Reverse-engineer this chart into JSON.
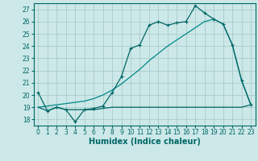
{
  "xlabel": "Humidex (Indice chaleur)",
  "bg_color": "#cce8e8",
  "grid_color": "#aacccc",
  "line_color_dark": "#006666",
  "line_color_mid": "#008888",
  "xlim": [
    -0.5,
    23.5
  ],
  "ylim": [
    17.5,
    27.5
  ],
  "yticks": [
    18,
    19,
    20,
    21,
    22,
    23,
    24,
    25,
    26,
    27
  ],
  "xticks": [
    0,
    1,
    2,
    3,
    4,
    5,
    6,
    7,
    8,
    9,
    10,
    11,
    12,
    13,
    14,
    15,
    16,
    17,
    18,
    19,
    20,
    21,
    22,
    23
  ],
  "series1_x": [
    0,
    1,
    2,
    3,
    4,
    5,
    6,
    7,
    8,
    9,
    10,
    11,
    12,
    13,
    14,
    15,
    16,
    17,
    18,
    19,
    20,
    21,
    22,
    23
  ],
  "series1_y": [
    20.2,
    18.7,
    19.0,
    18.8,
    17.8,
    18.8,
    18.9,
    19.1,
    20.2,
    21.5,
    23.8,
    24.1,
    25.7,
    26.0,
    25.7,
    25.9,
    26.0,
    27.3,
    26.7,
    26.2,
    25.8,
    24.1,
    21.2,
    19.2
  ],
  "series2_x": [
    0,
    1,
    2,
    3,
    4,
    5,
    6,
    7,
    8,
    9,
    10,
    11,
    12,
    13,
    14,
    15,
    16,
    17,
    18,
    19,
    20,
    21,
    22,
    23
  ],
  "series2_y": [
    19.0,
    19.1,
    19.2,
    19.3,
    19.4,
    19.5,
    19.7,
    20.0,
    20.4,
    20.9,
    21.5,
    22.1,
    22.8,
    23.4,
    24.0,
    24.5,
    25.0,
    25.5,
    26.0,
    26.2,
    25.8,
    24.1,
    21.2,
    19.2
  ],
  "series3_x": [
    0,
    1,
    2,
    3,
    4,
    5,
    6,
    7,
    8,
    9,
    10,
    11,
    12,
    13,
    14,
    15,
    16,
    17,
    18,
    19,
    20,
    21,
    22,
    23
  ],
  "series3_y": [
    19.0,
    18.7,
    19.0,
    18.8,
    18.8,
    18.8,
    18.8,
    18.9,
    19.0,
    19.0,
    19.0,
    19.0,
    19.0,
    19.0,
    19.0,
    19.0,
    19.0,
    19.0,
    19.0,
    19.0,
    19.0,
    19.0,
    19.0,
    19.2
  ]
}
